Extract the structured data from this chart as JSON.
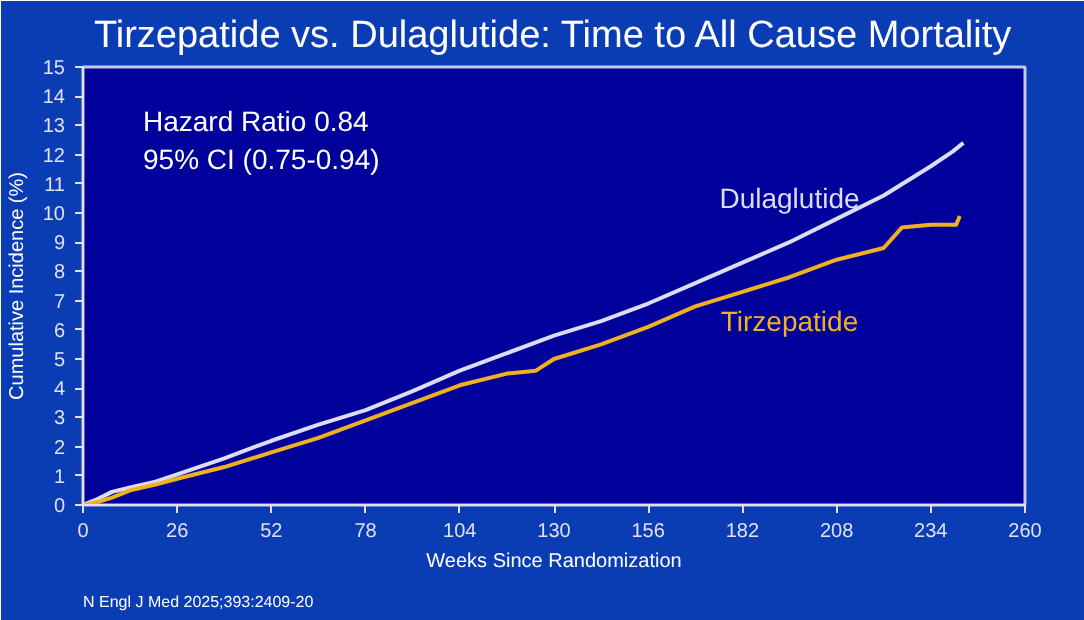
{
  "chart_data": {
    "type": "line",
    "title": "Tirzepatide vs. Dulaglutide: Time to All Cause Mortality",
    "xlabel": "Weeks Since Randomization",
    "ylabel": "Cumulative Incidence (%)",
    "annotations": [
      "Hazard Ratio 0.84",
      "95% CI (0.75-0.94)",
      "N Engl J Med 2025;393:2409-20"
    ],
    "xlim": [
      0,
      260
    ],
    "xticks": [
      0,
      26,
      52,
      78,
      104,
      130,
      156,
      182,
      208,
      234,
      260
    ],
    "ylim": [
      0,
      15
    ],
    "yticks": [
      0,
      1,
      2,
      3,
      4,
      5,
      6,
      7,
      8,
      9,
      10,
      11,
      12,
      13,
      14,
      15
    ],
    "grid": false,
    "series": [
      {
        "name": "Dulaglutide",
        "color": "#dcdcf5",
        "x": [
          0,
          4,
          8,
          13,
          20,
          26,
          39,
          52,
          65,
          78,
          91,
          104,
          117,
          130,
          143,
          156,
          169,
          182,
          195,
          208,
          221,
          234,
          240,
          243
        ],
        "values": [
          0,
          0.2,
          0.45,
          0.6,
          0.8,
          1.05,
          1.6,
          2.2,
          2.75,
          3.25,
          3.9,
          4.6,
          5.2,
          5.8,
          6.3,
          6.9,
          7.6,
          8.3,
          9.0,
          9.8,
          10.6,
          11.6,
          12.1,
          12.4
        ]
      },
      {
        "name": "Tirzepatide",
        "color": "#f0b020",
        "x": [
          0,
          4,
          8,
          13,
          20,
          26,
          39,
          52,
          65,
          78,
          91,
          104,
          117,
          125,
          130,
          143,
          156,
          169,
          182,
          195,
          208,
          221,
          226,
          234,
          241,
          242
        ],
        "values": [
          0,
          0.1,
          0.25,
          0.5,
          0.7,
          0.9,
          1.3,
          1.8,
          2.3,
          2.9,
          3.5,
          4.1,
          4.5,
          4.6,
          5.0,
          5.5,
          6.1,
          6.8,
          7.3,
          7.8,
          8.4,
          8.8,
          9.5,
          9.6,
          9.6,
          9.9
        ]
      }
    ]
  }
}
